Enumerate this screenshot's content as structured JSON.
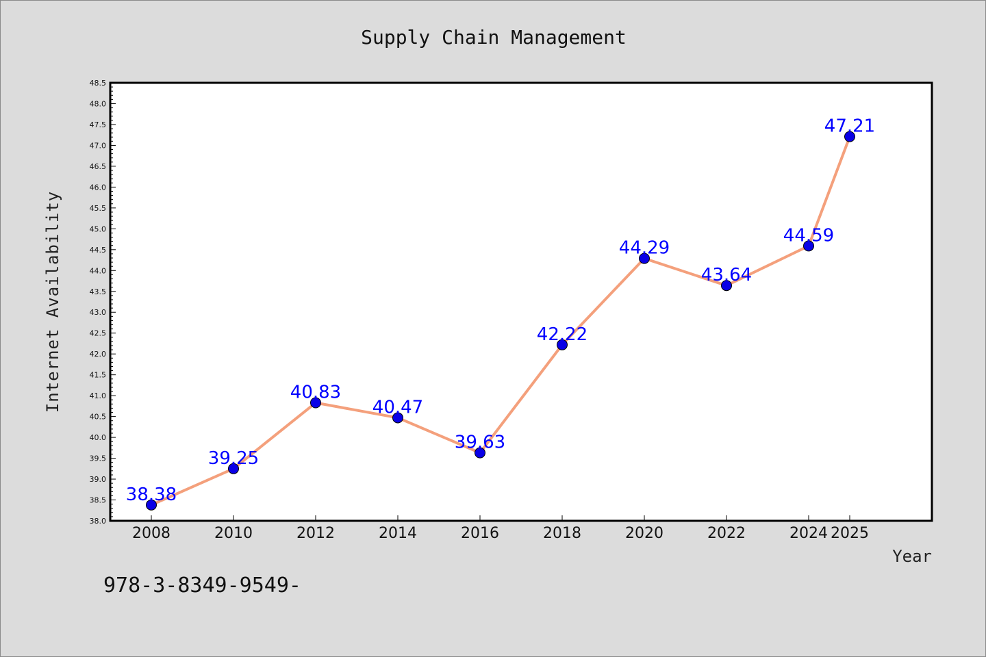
{
  "colors": {
    "background": "#dcdcdc",
    "plot_background": "#ffffff",
    "line": "#f4a07c",
    "marker": "#0a00e6",
    "data_label": "#0000ff"
  },
  "footer_text": "978-3-8349-9549-",
  "chart_data": {
    "type": "line",
    "title": "Supply Chain Management",
    "xlabel": "Year",
    "ylabel": "Internet Availability",
    "categories": [
      "2008",
      "2010",
      "2012",
      "2014",
      "2016",
      "2018",
      "2020",
      "2022",
      "2024",
      "2025"
    ],
    "x_ticks": [
      "2008",
      "2010",
      "2012",
      "2014",
      "2016",
      "2018",
      "2020",
      "2022",
      "2024",
      "2025"
    ],
    "ylim": [
      38.0,
      48.5
    ],
    "y_ticks": [
      "38.0",
      "38.5",
      "39.0",
      "39.5",
      "40.0",
      "40.5",
      "41.0",
      "41.5",
      "42.0",
      "42.5",
      "43.0",
      "43.5",
      "44.0",
      "44.5",
      "45.0",
      "45.5",
      "46.0",
      "46.5",
      "47.0",
      "47.5",
      "48.0",
      "48.5"
    ],
    "series": [
      {
        "values": [
          38.38,
          39.25,
          40.83,
          40.47,
          39.63,
          42.22,
          44.29,
          43.64,
          44.59,
          47.21
        ],
        "data_labels": [
          "38.38",
          "39.25",
          "40.83",
          "40.47",
          "39.63",
          "42.22",
          "44.29",
          "43.64",
          "44.59",
          "47.21"
        ]
      }
    ],
    "grid": false,
    "legend": "none"
  }
}
